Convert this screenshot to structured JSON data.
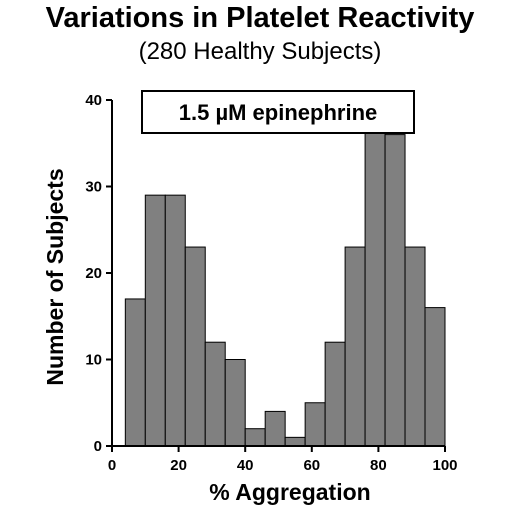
{
  "title": "Variations in Platelet Reactivity",
  "subtitle": "(280 Healthy Subjects)",
  "chart_data": {
    "type": "bar",
    "title": "Variations in Platelet Reactivity",
    "subtitle": "(280 Healthy Subjects)",
    "xlabel": "% Aggregation",
    "ylabel": "Number of Subjects",
    "annotation": "1.5 µM epinephrine",
    "xlim": [
      0,
      100
    ],
    "ylim": [
      0,
      40
    ],
    "x_ticks": [
      0,
      20,
      40,
      60,
      80,
      100
    ],
    "y_ticks": [
      0,
      10,
      20,
      30,
      40
    ],
    "bin_width": 6,
    "bins": [
      {
        "x0": 4,
        "x1": 10,
        "count": 17
      },
      {
        "x0": 10,
        "x1": 16,
        "count": 29
      },
      {
        "x0": 16,
        "x1": 22,
        "count": 29
      },
      {
        "x0": 22,
        "x1": 28,
        "count": 23
      },
      {
        "x0": 28,
        "x1": 34,
        "count": 12
      },
      {
        "x0": 34,
        "x1": 40,
        "count": 10
      },
      {
        "x0": 40,
        "x1": 46,
        "count": 2
      },
      {
        "x0": 46,
        "x1": 52,
        "count": 4
      },
      {
        "x0": 52,
        "x1": 58,
        "count": 1
      },
      {
        "x0": 58,
        "x1": 64,
        "count": 5
      },
      {
        "x0": 64,
        "x1": 70,
        "count": 12
      },
      {
        "x0": 70,
        "x1": 76,
        "count": 23
      },
      {
        "x0": 76,
        "x1": 82,
        "count": 37
      },
      {
        "x0": 82,
        "x1": 88,
        "count": 36
      },
      {
        "x0": 88,
        "x1": 94,
        "count": 23
      },
      {
        "x0": 94,
        "x1": 100,
        "count": 16
      }
    ],
    "bar_color": "#808080",
    "bar_edge_color": "#000000",
    "grid": false,
    "legend": "none"
  }
}
